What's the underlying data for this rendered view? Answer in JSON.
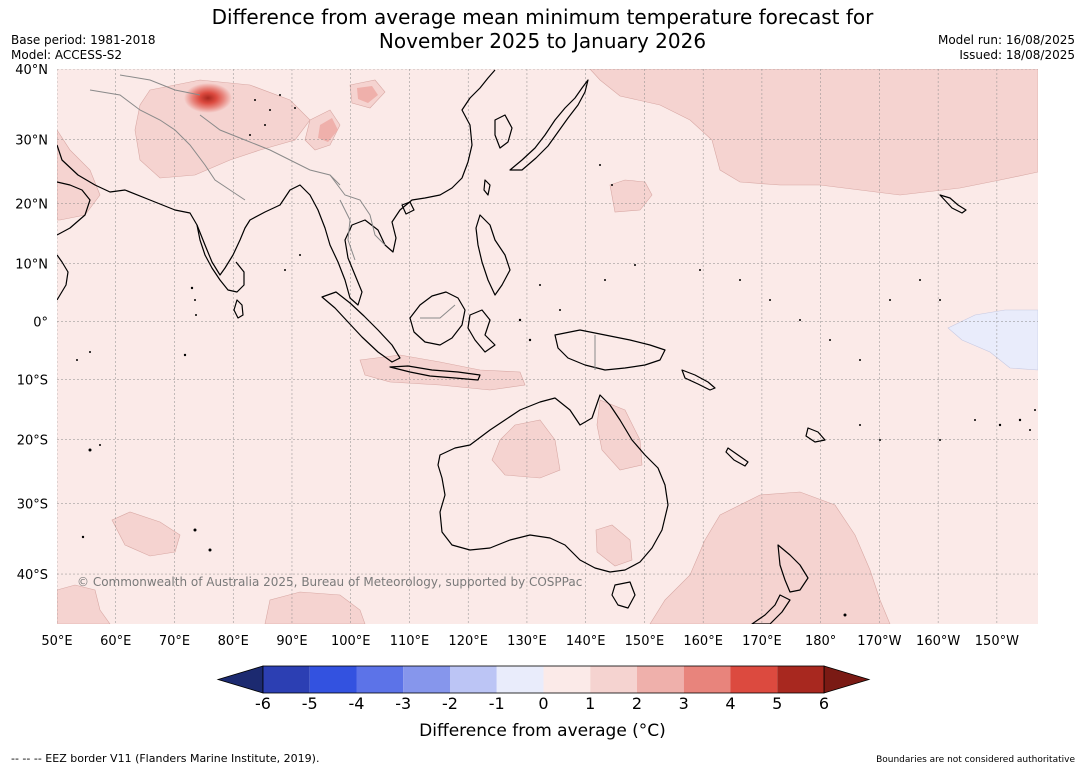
{
  "title": {
    "line1": "Difference from average mean minimum temperature forecast for",
    "line2": "November 2025 to January 2026"
  },
  "meta_left": {
    "base_period": "Base period: 1981-2018",
    "model": "Model: ACCESS-S2"
  },
  "meta_right": {
    "model_run": "Model run: 16/08/2025",
    "issued": "Issued: 18/08/2025"
  },
  "map": {
    "lat_labels": [
      "40°N",
      "30°N",
      "20°N",
      "10°N",
      "0°",
      "10°S",
      "20°S",
      "30°S",
      "40°S"
    ],
    "lat_values": [
      40,
      30,
      20,
      10,
      0,
      -10,
      -20,
      -30,
      -40
    ],
    "lon_labels": [
      "50°E",
      "60°E",
      "70°E",
      "80°E",
      "90°E",
      "100°E",
      "110°E",
      "120°E",
      "130°E",
      "140°E",
      "150°E",
      "160°E",
      "170°E",
      "180°",
      "170°W",
      "160°W",
      "150°W"
    ],
    "lon_values": [
      50,
      60,
      70,
      80,
      90,
      100,
      110,
      120,
      130,
      140,
      150,
      160,
      170,
      180,
      190,
      200,
      210
    ],
    "copyright": "© Commonwealth of Australia 2025, Bureau of Meteorology, supported by COSPPac"
  },
  "colorbar": {
    "label": "Difference from average (°C)",
    "ticks": [
      "-6",
      "-5",
      "-4",
      "-3",
      "-2",
      "-1",
      "0",
      "1",
      "2",
      "3",
      "4",
      "5",
      "6"
    ],
    "colors": [
      "#253494",
      "#2c3fb3",
      "#3352e0",
      "#5c73e8",
      "#8696ec",
      "#bcc5f5",
      "#e9ecfb",
      "#fbeae8",
      "#f5d3d0",
      "#efb0ab",
      "#e8847c",
      "#dc4a3f",
      "#a8281f"
    ],
    "under_color": "#1c2a70",
    "over_color": "#7a1a14"
  },
  "footer": {
    "left": "-- -- -- EEZ border V11 (Flanders Marine Institute, 2019).",
    "right": "Boundaries are not considered authoritative"
  }
}
